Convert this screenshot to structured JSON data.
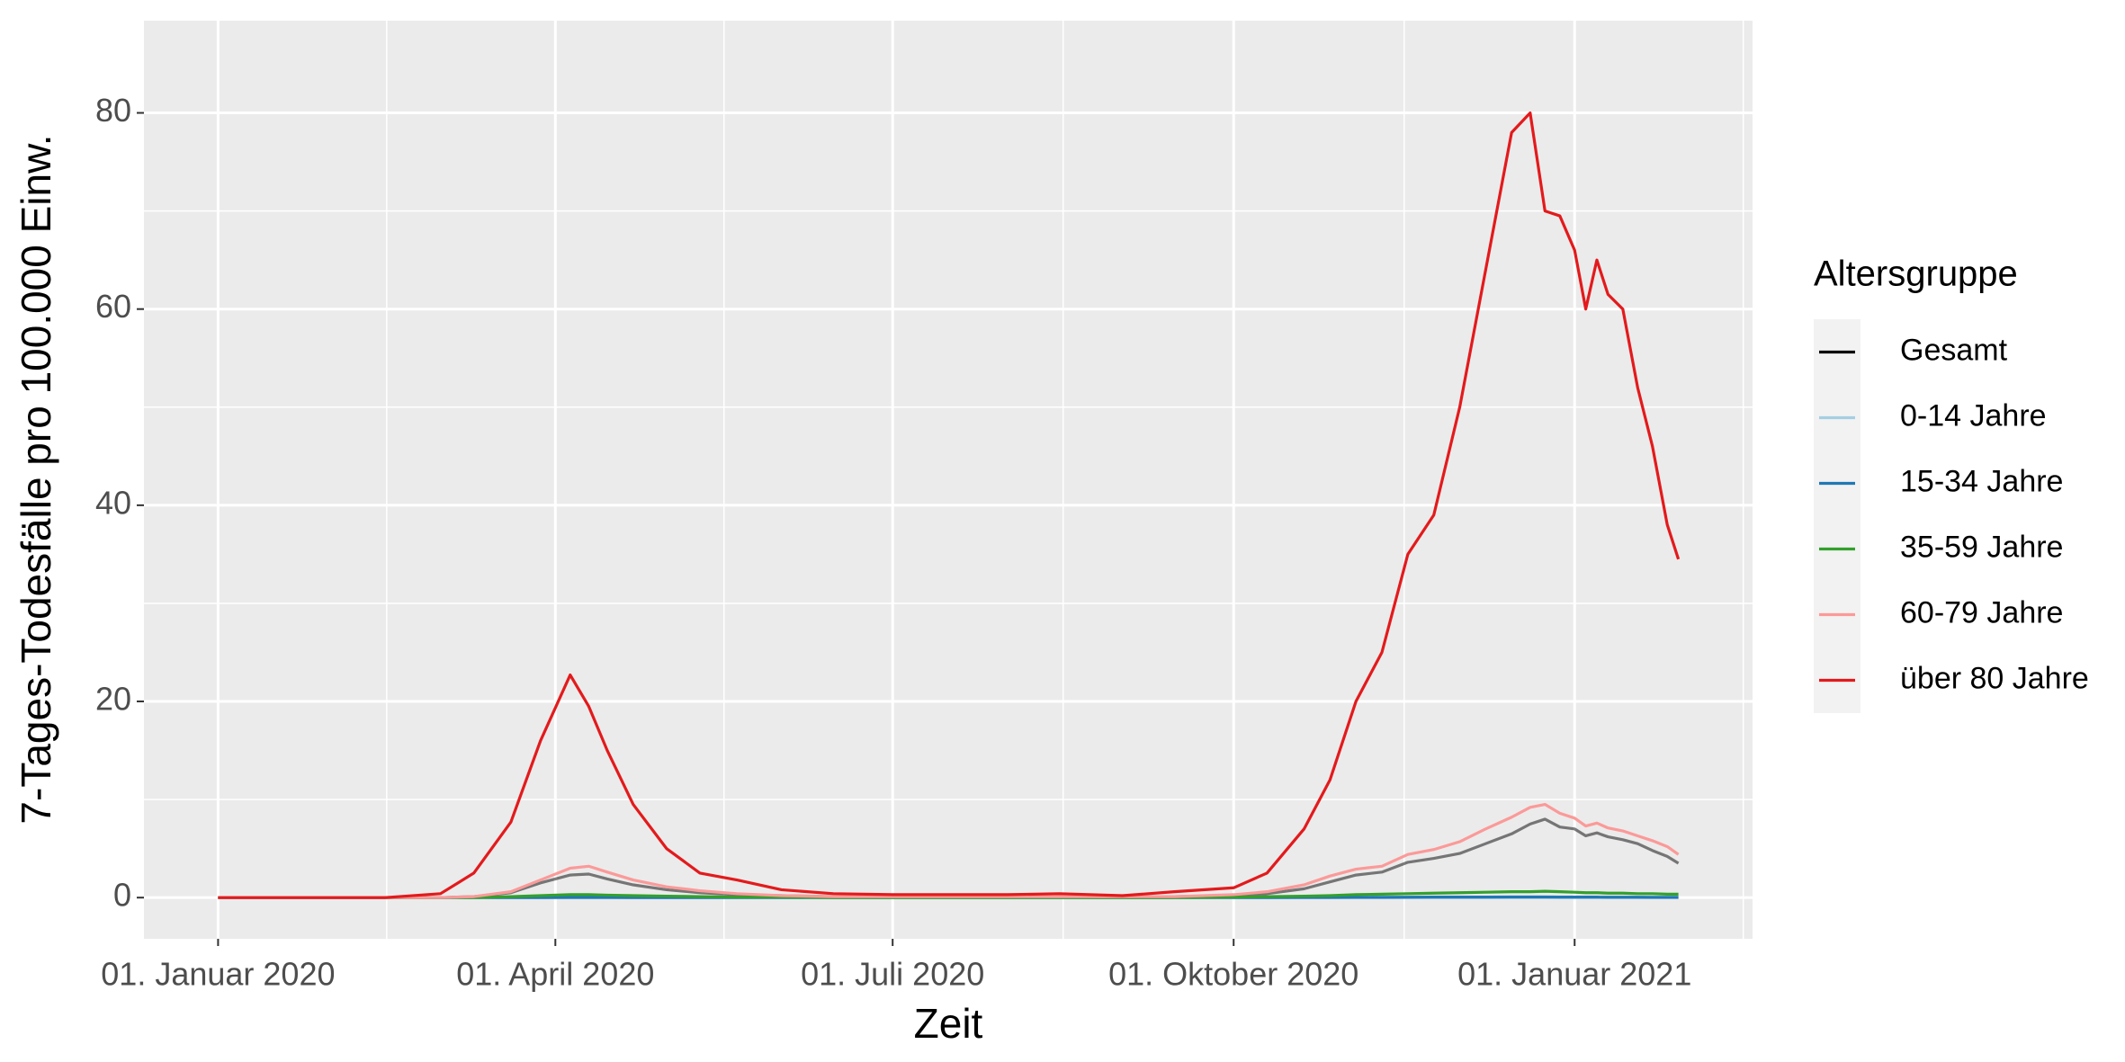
{
  "chart_data": {
    "type": "line",
    "x_label": "Zeit",
    "y_label": "7-Tages-Todesfälle pro 100.000 Einw.",
    "legend_title": "Altersgruppe",
    "legend_position": "right",
    "grid": true,
    "xlim": [
      "2019-12-12",
      "2021-02-18"
    ],
    "xticks": [
      {
        "value": "2020-01-01",
        "label": "01. Januar 2020"
      },
      {
        "value": "2020-04-01",
        "label": "01. April 2020"
      },
      {
        "value": "2020-07-01",
        "label": "01. Juli 2020"
      },
      {
        "value": "2020-10-01",
        "label": "01. Oktober 2020"
      },
      {
        "value": "2021-01-01",
        "label": "01. Januar 2021"
      }
    ],
    "ylim": [
      -4.2,
      89.4
    ],
    "yticks": [
      0,
      20,
      40,
      60,
      80
    ],
    "x": [
      "2020-01-01",
      "2020-02-15",
      "2020-03-01",
      "2020-03-10",
      "2020-03-20",
      "2020-03-28",
      "2020-04-05",
      "2020-04-10",
      "2020-04-15",
      "2020-04-22",
      "2020-05-01",
      "2020-05-10",
      "2020-05-20",
      "2020-06-01",
      "2020-06-15",
      "2020-07-01",
      "2020-07-15",
      "2020-08-01",
      "2020-08-15",
      "2020-09-01",
      "2020-09-15",
      "2020-10-01",
      "2020-10-10",
      "2020-10-20",
      "2020-10-27",
      "2020-11-03",
      "2020-11-10",
      "2020-11-17",
      "2020-11-24",
      "2020-12-01",
      "2020-12-08",
      "2020-12-15",
      "2020-12-20",
      "2020-12-24",
      "2020-12-28",
      "2021-01-01",
      "2021-01-04",
      "2021-01-07",
      "2021-01-10",
      "2021-01-14",
      "2021-01-18",
      "2021-01-22",
      "2021-01-26",
      "2021-01-29"
    ],
    "series": [
      {
        "name": "Gesamt",
        "color": "#000000",
        "alpha": 0.5,
        "values": [
          0,
          0,
          0,
          0.1,
          0.5,
          1.5,
          2.3,
          2.4,
          1.9,
          1.3,
          0.8,
          0.5,
          0.3,
          0.2,
          0.1,
          0.1,
          0.1,
          0.1,
          0.1,
          0.1,
          0.1,
          0.2,
          0.4,
          0.9,
          1.6,
          2.3,
          2.6,
          3.6,
          4.0,
          4.5,
          5.5,
          6.5,
          7.5,
          8.0,
          7.2,
          7.0,
          6.3,
          6.6,
          6.2,
          5.9,
          5.5,
          4.8,
          4.2,
          3.5
        ]
      },
      {
        "name": "0-14 Jahre",
        "color": "#a6cee3",
        "values": [
          0,
          0,
          0,
          0,
          0,
          0,
          0,
          0,
          0,
          0,
          0,
          0,
          0,
          0,
          0,
          0,
          0,
          0,
          0,
          0,
          0,
          0,
          0,
          0,
          0,
          0,
          0,
          0,
          0,
          0,
          0,
          0,
          0,
          0,
          0,
          0,
          0,
          0,
          0,
          0,
          0,
          0,
          0,
          0
        ]
      },
      {
        "name": "15-34 Jahre",
        "color": "#1f78b4",
        "values": [
          0,
          0,
          0,
          0,
          0,
          0,
          0.02,
          0.02,
          0.01,
          0,
          0,
          0,
          0,
          0,
          0,
          0,
          0,
          0,
          0,
          0,
          0,
          0,
          0,
          0.01,
          0.02,
          0.03,
          0.03,
          0.04,
          0.05,
          0.05,
          0.05,
          0.06,
          0.06,
          0.06,
          0.05,
          0.05,
          0.05,
          0.05,
          0.04,
          0.04,
          0.04,
          0.03,
          0.03,
          0.03
        ]
      },
      {
        "name": "35-59 Jahre",
        "color": "#33a02c",
        "values": [
          0,
          0,
          0,
          0,
          0.1,
          0.2,
          0.3,
          0.3,
          0.25,
          0.2,
          0.15,
          0.1,
          0.05,
          0.05,
          0,
          0,
          0,
          0,
          0,
          0,
          0,
          0.05,
          0.1,
          0.15,
          0.2,
          0.3,
          0.35,
          0.4,
          0.45,
          0.5,
          0.55,
          0.6,
          0.6,
          0.65,
          0.6,
          0.55,
          0.5,
          0.5,
          0.45,
          0.45,
          0.4,
          0.4,
          0.35,
          0.35
        ]
      },
      {
        "name": "60-79 Jahre",
        "color": "#fb9a99",
        "values": [
          0,
          0,
          0,
          0.1,
          0.6,
          1.8,
          3.0,
          3.2,
          2.6,
          1.8,
          1.1,
          0.7,
          0.4,
          0.2,
          0.1,
          0.1,
          0.1,
          0.1,
          0.1,
          0.1,
          0.1,
          0.3,
          0.6,
          1.3,
          2.2,
          2.9,
          3.2,
          4.4,
          4.9,
          5.7,
          7.0,
          8.2,
          9.2,
          9.5,
          8.6,
          8.1,
          7.3,
          7.6,
          7.1,
          6.8,
          6.3,
          5.8,
          5.2,
          4.4
        ]
      },
      {
        "name": "über 80 Jahre",
        "color": "#e31a1c",
        "values": [
          0,
          0,
          0.4,
          2.5,
          7.7,
          16,
          22.7,
          19.5,
          15,
          9.5,
          5,
          2.5,
          1.8,
          0.8,
          0.4,
          0.3,
          0.3,
          0.3,
          0.4,
          0.2,
          0.6,
          1.0,
          2.5,
          7,
          12,
          20,
          25,
          35,
          39,
          50,
          64,
          78,
          80,
          70,
          69.5,
          66,
          60,
          65,
          61.5,
          60,
          52,
          46,
          38,
          34.5
        ]
      }
    ]
  }
}
